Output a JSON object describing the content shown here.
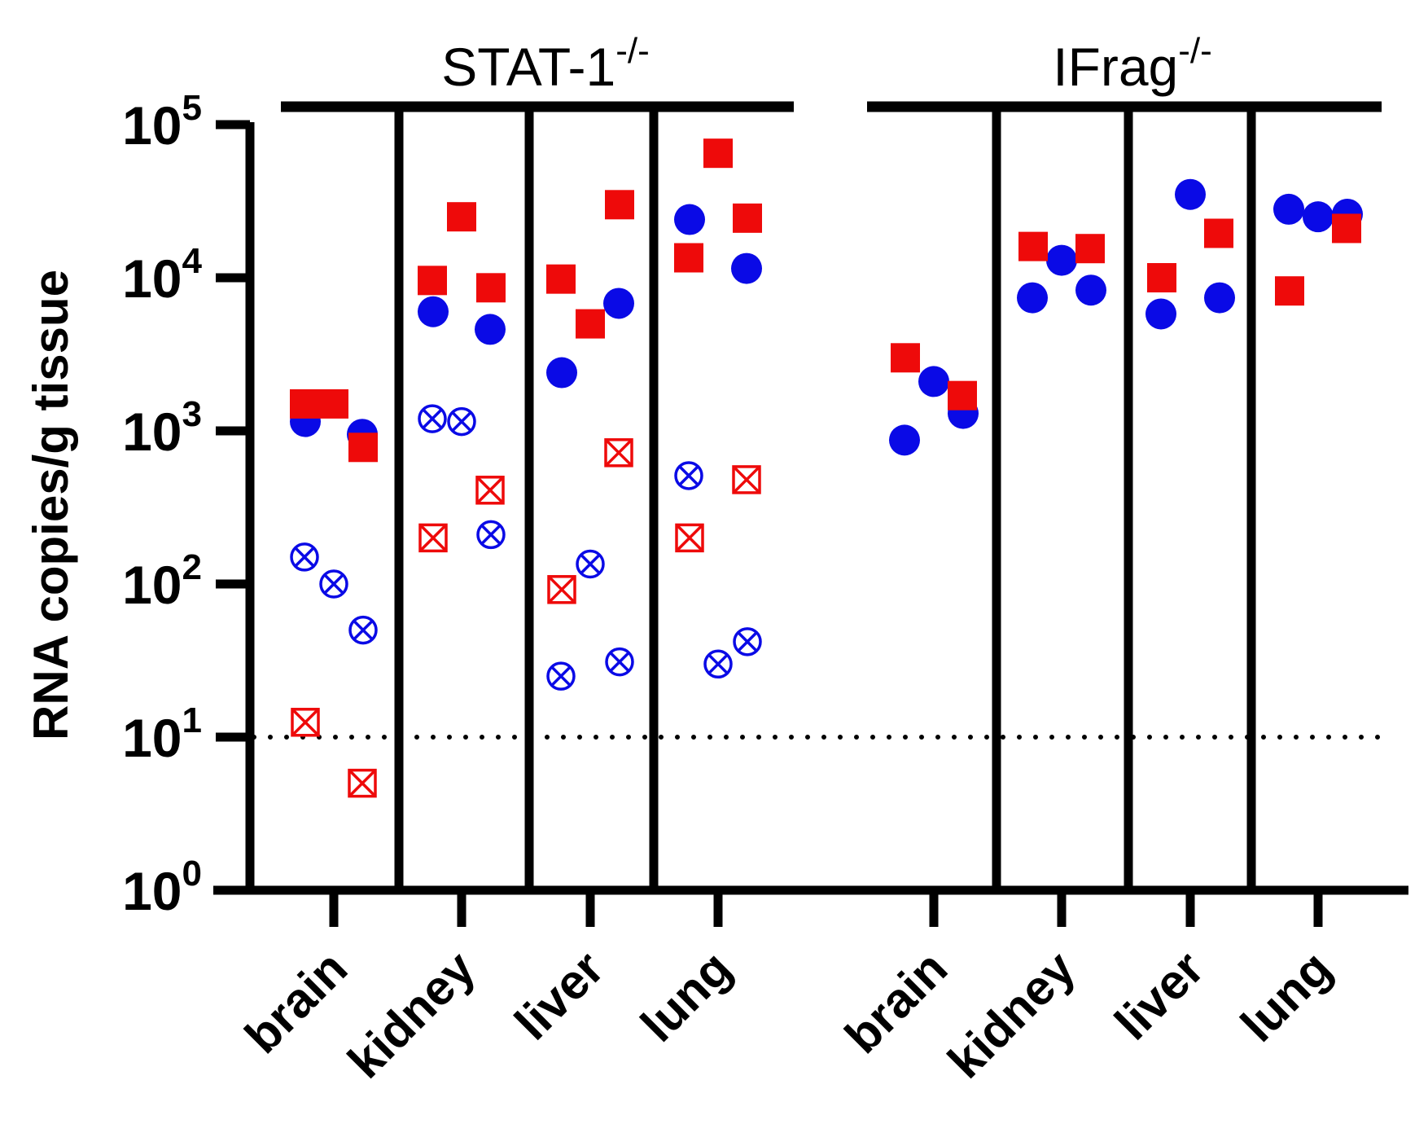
{
  "chart_data": {
    "type": "scatter",
    "ylabel": "RNA copies/g tissue",
    "yscale": "log",
    "ylim": [
      1,
      100000
    ],
    "ytick_labels": [
      {
        "base": "10",
        "exp": "0"
      },
      {
        "base": "10",
        "exp": "1"
      },
      {
        "base": "10",
        "exp": "2"
      },
      {
        "base": "10",
        "exp": "3"
      },
      {
        "base": "10",
        "exp": "4"
      },
      {
        "base": "10",
        "exp": "5"
      }
    ],
    "detection_limit": 10,
    "groups": [
      {
        "label": "STAT-1",
        "sup": "-/-",
        "categories": [
          "brain",
          "kidney",
          "liver",
          "lung"
        ]
      },
      {
        "label": "IFrag",
        "sup": "-/-",
        "categories": [
          "brain",
          "kidney",
          "liver",
          "lung"
        ]
      }
    ],
    "colors": {
      "blue": "#0a0ae6",
      "red": "#ee0a0a"
    },
    "series": [
      {
        "marker": "filled-circle",
        "color": "blue",
        "points": [
          {
            "group": 0,
            "category": "brain",
            "y": [
              1150,
              950
            ]
          },
          {
            "group": 0,
            "category": "kidney",
            "y": [
              6000,
              4600
            ]
          },
          {
            "group": 0,
            "category": "liver",
            "y": [
              2400,
              6800
            ]
          },
          {
            "group": 0,
            "category": "lung",
            "y": [
              24000,
              11500
            ]
          },
          {
            "group": 1,
            "category": "brain",
            "y": [
              870,
              2100,
              1300
            ]
          },
          {
            "group": 1,
            "category": "kidney",
            "y": [
              7400,
              13000,
              8300
            ]
          },
          {
            "group": 1,
            "category": "liver",
            "y": [
              5800,
              35000,
              7400
            ]
          },
          {
            "group": 1,
            "category": "lung",
            "y": [
              28000,
              25000,
              26000
            ]
          }
        ]
      },
      {
        "marker": "filled-square",
        "color": "red",
        "points": [
          {
            "group": 0,
            "category": "brain",
            "y": [
              1500,
              1500,
              780
            ]
          },
          {
            "group": 0,
            "category": "kidney",
            "y": [
              9600,
              25000,
              8600
            ]
          },
          {
            "group": 0,
            "category": "liver",
            "y": [
              9800,
              5000,
              30000
            ]
          },
          {
            "group": 0,
            "category": "lung",
            "y": [
              13500,
              65000,
              24500
            ]
          },
          {
            "group": 1,
            "category": "brain",
            "y": [
              3000,
              1700
            ]
          },
          {
            "group": 1,
            "category": "kidney",
            "y": [
              16000,
              15500
            ]
          },
          {
            "group": 1,
            "category": "liver",
            "y": [
              10000,
              19500
            ]
          },
          {
            "group": 1,
            "category": "lung",
            "y": [
              8200,
              21000
            ]
          }
        ]
      },
      {
        "marker": "open-circle-x",
        "color": "blue",
        "points": [
          {
            "group": 0,
            "category": "brain",
            "y": [
              150,
              100,
              50
            ]
          },
          {
            "group": 0,
            "category": "kidney",
            "y": [
              1200,
              1150,
              210
            ]
          },
          {
            "group": 0,
            "category": "liver",
            "y": [
              25,
              135,
              31
            ]
          },
          {
            "group": 0,
            "category": "lung",
            "y": [
              510,
              30,
              42
            ]
          }
        ]
      },
      {
        "marker": "open-square-x",
        "color": "red",
        "points": [
          {
            "group": 0,
            "category": "brain",
            "y": [
              12.5,
              5
            ]
          },
          {
            "group": 0,
            "category": "kidney",
            "y": [
              200,
              410
            ]
          },
          {
            "group": 0,
            "category": "liver",
            "y": [
              92,
              720
            ]
          },
          {
            "group": 0,
            "category": "lung",
            "y": [
              200,
              480
            ]
          }
        ]
      }
    ]
  }
}
